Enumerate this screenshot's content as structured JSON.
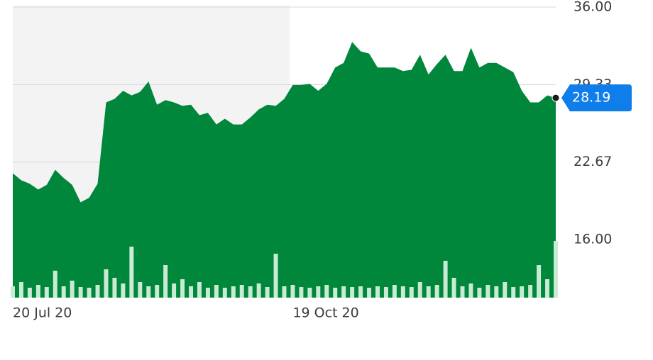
{
  "chart_data": {
    "type": "area",
    "categories": [
      "20 Jul 20",
      null,
      null,
      null,
      null,
      null,
      null,
      null,
      null,
      null,
      null,
      null,
      null,
      null,
      null,
      null,
      null,
      null,
      null,
      null,
      null,
      null,
      null,
      null,
      null,
      null,
      null,
      null,
      null,
      null,
      null,
      null,
      null,
      "19 Oct 20",
      null,
      null,
      null,
      null,
      null,
      null,
      null,
      null,
      null,
      null,
      null,
      null,
      null,
      null,
      null,
      null,
      null,
      null,
      null,
      null,
      null,
      null,
      null,
      null,
      null,
      null,
      null,
      null,
      null,
      null,
      null
    ],
    "series": [
      {
        "color": "#00873c",
        "values": [
          21.7,
          21.1,
          20.8,
          20.3,
          20.7,
          22.0,
          21.3,
          20.7,
          19.2,
          19.6,
          20.8,
          27.8,
          28.1,
          28.8,
          28.4,
          28.7,
          29.6,
          27.6,
          28.0,
          27.8,
          27.5,
          27.6,
          26.7,
          26.9,
          25.9,
          26.4,
          25.9,
          25.9,
          26.5,
          27.2,
          27.6,
          27.5,
          28.1,
          29.3,
          29.3,
          29.4,
          28.8,
          29.4,
          30.8,
          31.2,
          33.0,
          32.2,
          32.0,
          30.8,
          30.8,
          30.8,
          30.5,
          30.6,
          31.9,
          30.2,
          31.1,
          31.9,
          30.5,
          30.5,
          32.5,
          30.8,
          31.2,
          31.2,
          30.8,
          30.4,
          28.8,
          27.8,
          27.8,
          28.4,
          28.19
        ]
      },
      {
        "color": "#c9ead3",
        "axis": "y2",
        "values": [
          16,
          22,
          14,
          18,
          15,
          38,
          16,
          24,
          15,
          14,
          18,
          40,
          28,
          20,
          72,
          22,
          16,
          18,
          46,
          20,
          26,
          16,
          22,
          14,
          18,
          14,
          16,
          18,
          16,
          20,
          15,
          62,
          16,
          18,
          15,
          14,
          16,
          18,
          14,
          16,
          15,
          16,
          14,
          16,
          15,
          18,
          16,
          15,
          22,
          16,
          18,
          52,
          28,
          16,
          20,
          14,
          18,
          16,
          22,
          15,
          16,
          18,
          46,
          26,
          80
        ]
      }
    ],
    "ylim": [
      11,
      36
    ],
    "yticks": [
      {
        "value": 36,
        "label": "36.00"
      },
      {
        "value": 29.33,
        "label": "29.33"
      },
      {
        "value": 22.67,
        "label": "22.67"
      },
      {
        "value": 16,
        "label": "16.00"
      }
    ],
    "y2lim": [
      0,
      100
    ],
    "grid": true
  }
}
